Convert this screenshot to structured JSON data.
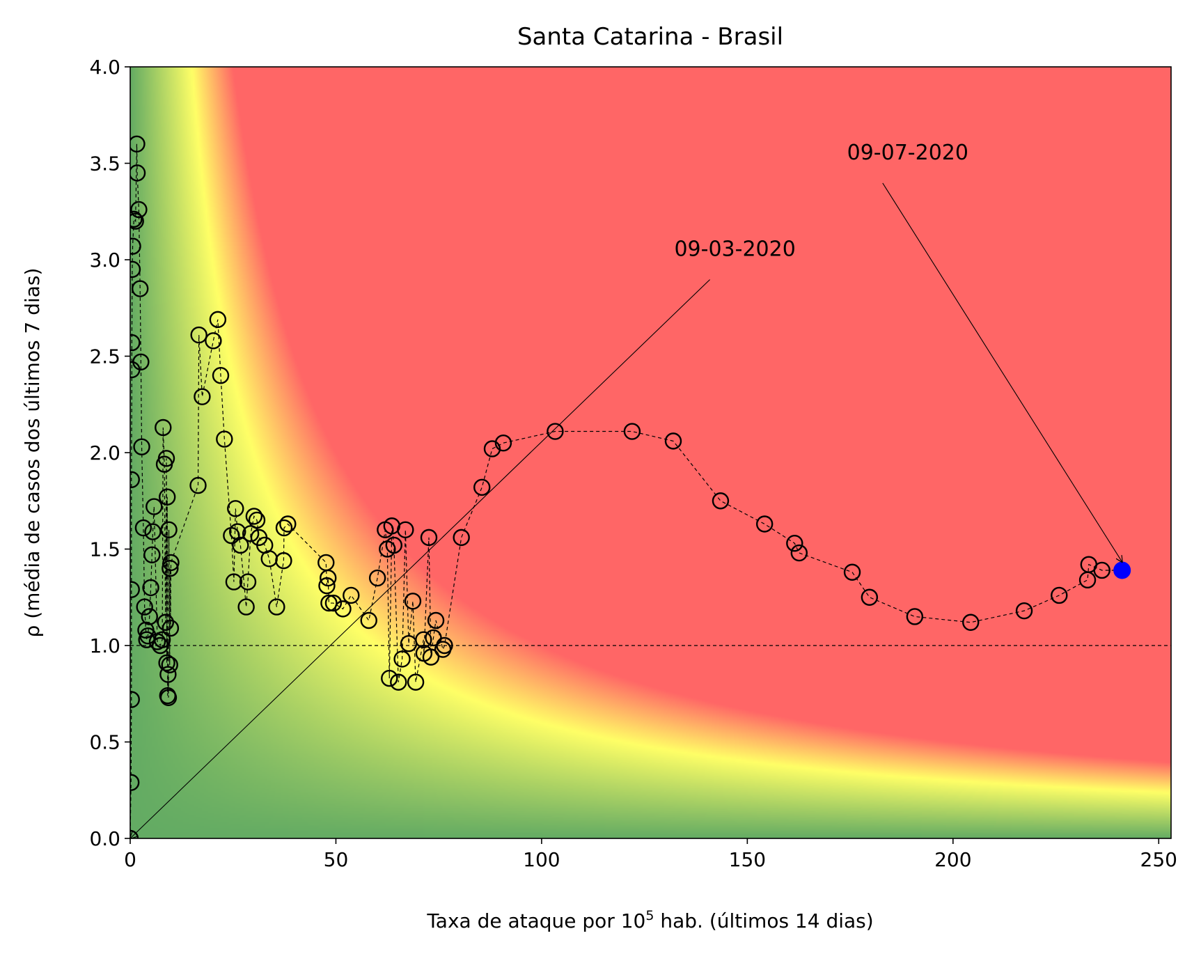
{
  "chart_data": {
    "type": "scatter",
    "title": "Santa Catarina - Brasil",
    "xlabel": {
      "prefix": "Taxa de ataque por 10",
      "superscript": "5",
      "suffix": " hab. (últimos 14 dias)"
    },
    "ylabel": "ρ (média de casos dos últimos 7 dias)",
    "xlim": [
      0,
      253
    ],
    "ylim": [
      0,
      4
    ],
    "xticks": [
      0,
      50,
      100,
      150,
      200,
      250
    ],
    "yticks": [
      0.0,
      0.5,
      1.0,
      1.5,
      2.0,
      2.5,
      3.0,
      3.5,
      4.0
    ],
    "reference_line_y": 1.0,
    "background": {
      "type": "risk-gradient",
      "colors": {
        "low": "#63ab63",
        "mid": "#ffff66",
        "high": "#ff6666"
      }
    },
    "series": [
      {
        "marker": "open-circle",
        "line": "dashed",
        "color": "#000000",
        "points": [
          [
            0.0,
            0.0
          ],
          [
            0.2,
            0.29
          ],
          [
            0.3,
            0.72
          ],
          [
            0.3,
            1.29
          ],
          [
            0.3,
            1.86
          ],
          [
            0.4,
            2.43
          ],
          [
            0.4,
            2.57
          ],
          [
            0.5,
            2.95
          ],
          [
            0.6,
            3.07
          ],
          [
            0.9,
            3.21
          ],
          [
            1.3,
            3.2
          ],
          [
            1.6,
            3.6
          ],
          [
            1.7,
            3.45
          ],
          [
            2.1,
            3.26
          ],
          [
            2.4,
            2.85
          ],
          [
            2.6,
            2.47
          ],
          [
            2.8,
            2.03
          ],
          [
            3.2,
            1.61
          ],
          [
            3.5,
            1.2
          ],
          [
            3.8,
            1.08
          ],
          [
            4.0,
            1.03
          ],
          [
            4.3,
            1.05
          ],
          [
            4.7,
            1.15
          ],
          [
            5.0,
            1.3
          ],
          [
            5.3,
            1.47
          ],
          [
            5.5,
            1.59
          ],
          [
            5.8,
            1.72
          ],
          [
            6.6,
            1.02
          ],
          [
            7.3,
            1.0
          ],
          [
            7.8,
            1.03
          ],
          [
            8.0,
            2.13
          ],
          [
            8.3,
            1.94
          ],
          [
            8.6,
            1.12
          ],
          [
            8.8,
            1.97
          ],
          [
            8.9,
            0.91
          ],
          [
            9.0,
            1.77
          ],
          [
            9.1,
            0.74
          ],
          [
            9.2,
            0.85
          ],
          [
            9.3,
            0.73
          ],
          [
            9.4,
            1.6
          ],
          [
            9.6,
            0.9
          ],
          [
            9.7,
            1.4
          ],
          [
            9.8,
            1.09
          ],
          [
            9.9,
            1.43
          ],
          [
            16.5,
            1.83
          ],
          [
            16.7,
            2.61
          ],
          [
            17.5,
            2.29
          ],
          [
            20.2,
            2.58
          ],
          [
            21.3,
            2.69
          ],
          [
            22.0,
            2.4
          ],
          [
            22.9,
            2.07
          ],
          [
            24.6,
            1.57
          ],
          [
            25.2,
            1.33
          ],
          [
            25.6,
            1.71
          ],
          [
            26.1,
            1.59
          ],
          [
            26.8,
            1.52
          ],
          [
            28.2,
            1.2
          ],
          [
            28.6,
            1.33
          ],
          [
            29.3,
            1.58
          ],
          [
            30.1,
            1.67
          ],
          [
            30.8,
            1.65
          ],
          [
            31.3,
            1.56
          ],
          [
            32.7,
            1.52
          ],
          [
            33.8,
            1.45
          ],
          [
            35.6,
            1.2
          ],
          [
            37.3,
            1.44
          ],
          [
            37.4,
            1.61
          ],
          [
            38.3,
            1.63
          ],
          [
            47.6,
            1.43
          ],
          [
            47.8,
            1.31
          ],
          [
            48.1,
            1.35
          ],
          [
            48.3,
            1.22
          ],
          [
            49.4,
            1.22
          ],
          [
            51.7,
            1.19
          ],
          [
            53.7,
            1.26
          ],
          [
            58.0,
            1.13
          ],
          [
            60.1,
            1.35
          ],
          [
            62.0,
            1.6
          ],
          [
            62.5,
            1.5
          ],
          [
            63.0,
            0.83
          ],
          [
            63.6,
            1.62
          ],
          [
            64.1,
            1.52
          ],
          [
            65.2,
            0.81
          ],
          [
            66.1,
            0.93
          ],
          [
            66.9,
            1.6
          ],
          [
            67.7,
            1.01
          ],
          [
            68.7,
            1.23
          ],
          [
            69.4,
            0.81
          ],
          [
            71.3,
            1.03
          ],
          [
            71.4,
            0.96
          ],
          [
            72.6,
            1.56
          ],
          [
            73.1,
            0.94
          ],
          [
            73.7,
            1.04
          ],
          [
            74.3,
            1.13
          ],
          [
            76.0,
            0.98
          ],
          [
            76.4,
            1.0
          ],
          [
            80.5,
            1.56
          ],
          [
            85.5,
            1.82
          ],
          [
            88.0,
            2.02
          ],
          [
            90.7,
            2.05
          ],
          [
            103.3,
            2.11
          ],
          [
            122.0,
            2.11
          ],
          [
            132.0,
            2.06
          ],
          [
            143.5,
            1.75
          ],
          [
            154.2,
            1.63
          ],
          [
            161.5,
            1.53
          ],
          [
            162.6,
            1.48
          ],
          [
            175.5,
            1.38
          ],
          [
            179.7,
            1.25
          ],
          [
            190.7,
            1.15
          ],
          [
            204.3,
            1.12
          ],
          [
            217.3,
            1.18
          ],
          [
            225.8,
            1.26
          ],
          [
            232.7,
            1.34
          ],
          [
            233.0,
            1.42
          ],
          [
            236.2,
            1.39
          ]
        ]
      }
    ],
    "last_point": {
      "x": 241.1,
      "y": 1.39,
      "color": "#0000ff"
    },
    "annotations": [
      {
        "text": "09-03-2020",
        "text_x": 147,
        "text_y": 3.02,
        "point_x": 0.0,
        "point_y": 0.0
      },
      {
        "text": "09-07-2020",
        "text_x": 189,
        "text_y": 3.52,
        "point_x": 241.1,
        "point_y": 1.39
      }
    ]
  }
}
